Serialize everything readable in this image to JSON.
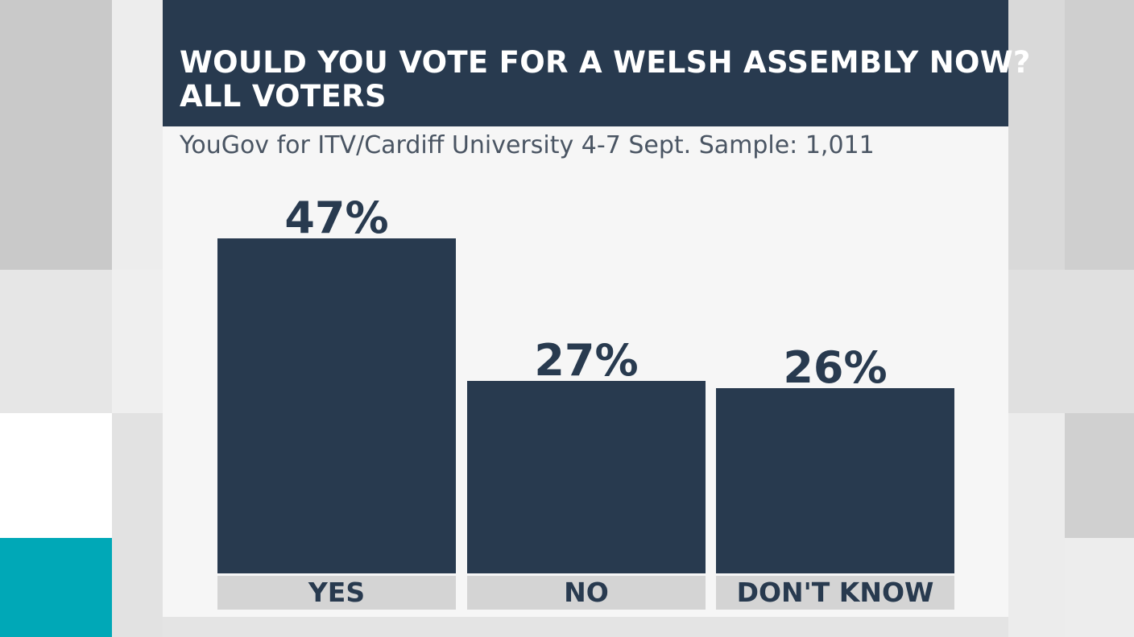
{
  "header": {
    "title_line1": "WOULD YOU VOTE FOR A WELSH ASSEMBLY NOW?",
    "title_line2": "ALL VOTERS"
  },
  "subtitle": "YouGov for ITV/Cardiff University 4-7 Sept. Sample: 1,011",
  "colors": {
    "bar": "#283a4f",
    "header_bg": "#283a4f",
    "accent": "#00a8b7",
    "category_bg": "#d4d4d4"
  },
  "chart_data": {
    "type": "bar",
    "title": "WOULD YOU VOTE FOR A WELSH ASSEMBLY NOW? ALL VOTERS",
    "subtitle": "YouGov for ITV/Cardiff University 4-7 Sept. Sample: 1,011",
    "categories": [
      "YES",
      "NO",
      "DON'T KNOW"
    ],
    "values": [
      47,
      27,
      26
    ],
    "value_labels": [
      "47%",
      "27%",
      "26%"
    ],
    "unit": "%",
    "xlabel": "",
    "ylabel": "",
    "grid": false,
    "legend": "none"
  }
}
